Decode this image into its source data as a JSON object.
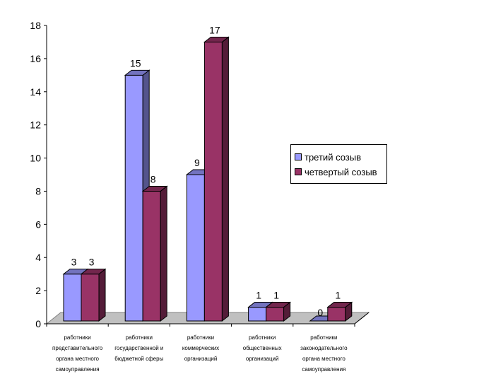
{
  "chart_data": {
    "type": "bar",
    "categories": [
      [
        "работники",
        "представительного",
        "органа местного",
        "самоуправления"
      ],
      [
        "работники",
        "государственной и",
        "бюджетной сферы"
      ],
      [
        "работники",
        "коммерческих",
        "организаций"
      ],
      [
        "работники",
        "общественных",
        "организаций"
      ],
      [
        "работники",
        "законодательного",
        "органа местного",
        "самоуправления"
      ]
    ],
    "series": [
      {
        "name": "третий созыв",
        "values": [
          3,
          15,
          9,
          1,
          0
        ],
        "color": "#9999ff"
      },
      {
        "name": "четвертый созыв",
        "values": [
          3,
          8,
          17,
          1,
          1
        ],
        "color": "#993366"
      }
    ],
    "ylim": [
      0,
      18
    ],
    "ytick_step": 2,
    "y_tick_labels": [
      "0",
      "2",
      "4",
      "6",
      "8",
      "10",
      "12",
      "14",
      "16",
      "18"
    ],
    "data_labels": true,
    "grid": false,
    "legend_position": "right",
    "title": "",
    "xlabel": "",
    "ylabel": ""
  }
}
